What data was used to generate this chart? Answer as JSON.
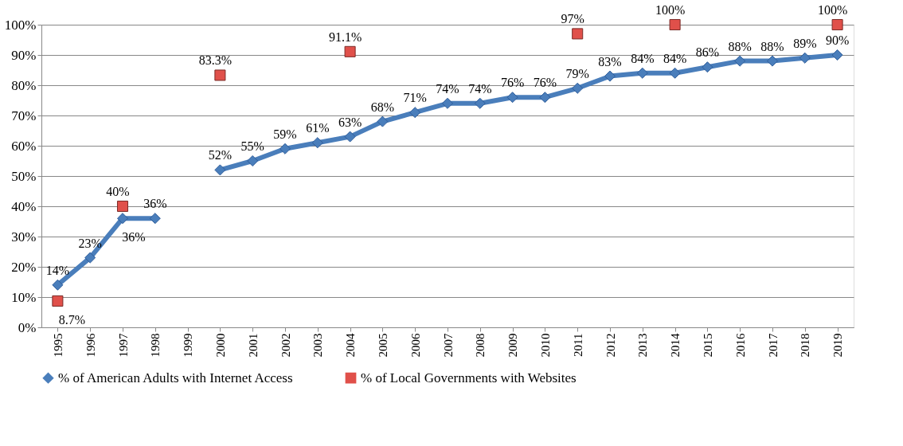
{
  "chart_data": {
    "type": "line",
    "categories": [
      "1995",
      "1996",
      "1997",
      "1998",
      "1999",
      "2000",
      "2001",
      "2002",
      "2003",
      "2004",
      "2005",
      "2006",
      "2007",
      "2008",
      "2009",
      "2010",
      "2011",
      "2012",
      "2013",
      "2014",
      "2015",
      "2016",
      "2017",
      "2018",
      "2019"
    ],
    "series": [
      {
        "name": "% of American Adults with Internet Access",
        "color": "#4a7ebb",
        "marker": "diamond",
        "values": [
          14,
          23,
          36,
          36,
          null,
          52,
          55,
          59,
          61,
          63,
          68,
          71,
          74,
          74,
          76,
          76,
          79,
          83,
          84,
          84,
          86,
          88,
          88,
          89,
          90
        ],
        "value_labels": [
          "14%",
          "23%",
          "36%",
          "36%",
          null,
          "52%",
          "55%",
          "59%",
          "61%",
          "63%",
          "68%",
          "71%",
          "74%",
          "74%",
          "76%",
          "76%",
          "79%",
          "83%",
          "84%",
          "84%",
          "86%",
          "88%",
          "88%",
          "89%",
          "90%"
        ]
      },
      {
        "name": "% of Local Governments with Websites",
        "type": "scatter",
        "color": "#e0504a",
        "marker": "square",
        "values": [
          8.7,
          null,
          40,
          null,
          null,
          83.3,
          null,
          null,
          null,
          91.1,
          null,
          null,
          null,
          null,
          null,
          null,
          97,
          null,
          null,
          100,
          null,
          null,
          null,
          null,
          100
        ],
        "value_labels": [
          "8.7%",
          null,
          "40%",
          null,
          null,
          "83.3%",
          null,
          null,
          null,
          "91.1%",
          null,
          null,
          null,
          null,
          null,
          null,
          "97%",
          null,
          null,
          "100%",
          null,
          null,
          null,
          null,
          "100%"
        ]
      }
    ],
    "ylim": [
      0,
      100
    ],
    "yticks": [
      {
        "value": 0,
        "label": "0%"
      },
      {
        "value": 10,
        "label": "10%"
      },
      {
        "value": 20,
        "label": "20%"
      },
      {
        "value": 30,
        "label": "30%"
      },
      {
        "value": 40,
        "label": "40%"
      },
      {
        "value": 50,
        "label": "50%"
      },
      {
        "value": 60,
        "label": "60%"
      },
      {
        "value": 70,
        "label": "70%"
      },
      {
        "value": 80,
        "label": "80%"
      },
      {
        "value": 90,
        "label": "90%"
      },
      {
        "value": 100,
        "label": "100%"
      }
    ],
    "grid": "y",
    "legend": "bottom"
  }
}
